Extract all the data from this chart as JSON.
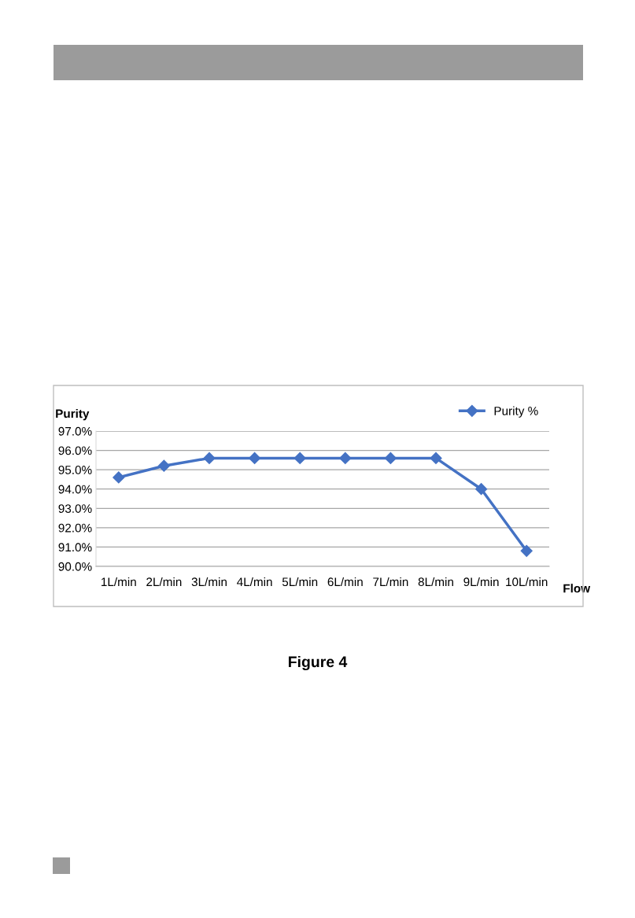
{
  "chart_data": {
    "type": "line",
    "ylabel": "Purity",
    "xlabel": "Flow",
    "categories": [
      "1L/min",
      "2L/min",
      "3L/min",
      "4L/min",
      "5L/min",
      "6L/min",
      "7L/min",
      "8L/min",
      "9L/min",
      "10L/min"
    ],
    "series": [
      {
        "name": "Purity %",
        "color": "#4472c4",
        "values": [
          94.6,
          95.2,
          95.6,
          95.6,
          95.6,
          95.6,
          95.6,
          95.6,
          94.0,
          90.8
        ]
      }
    ],
    "ylim": [
      90,
      97
    ],
    "yticks": [
      {
        "value": 90,
        "label": "90.0%"
      },
      {
        "value": 91,
        "label": "91.0%"
      },
      {
        "value": 92,
        "label": "92.0%"
      },
      {
        "value": 93,
        "label": "93.0%"
      },
      {
        "value": 94,
        "label": "94.0%"
      },
      {
        "value": 95,
        "label": "95.0%"
      },
      {
        "value": 96,
        "label": "96.0%"
      },
      {
        "value": 97,
        "label": "97.0%"
      }
    ],
    "grid": "y",
    "legend": "top right",
    "marker": "diamond",
    "line_style": "solid",
    "annotations": [
      "Figure 4"
    ]
  }
}
